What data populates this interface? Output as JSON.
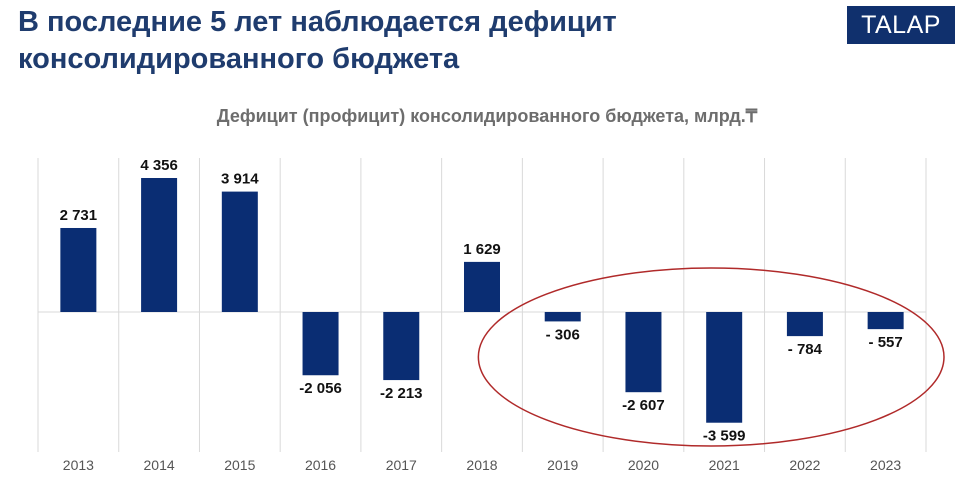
{
  "header": {
    "headline": "В последние 5 лет наблюдается дефицит консолидированного бюджета",
    "logo_text": "TALAP"
  },
  "colors": {
    "bar": "#0a2d73",
    "headline": "#1f3c6e",
    "logo_bg": "#10306d",
    "highlight_ellipse": "#b02a2a",
    "gridline": "#d9d9d9"
  },
  "chart_data": {
    "type": "bar",
    "title": "Дефицит (профицит) консолидированного бюджета, млрд.₸",
    "categories": [
      "2013",
      "2014",
      "2015",
      "2016",
      "2017",
      "2018",
      "2019",
      "2020",
      "2021",
      "2022",
      "2023"
    ],
    "values": [
      2731,
      4356,
      3914,
      -2056,
      -2213,
      1629,
      -306,
      -2607,
      -3599,
      -784,
      -557
    ],
    "data_labels": [
      "2 731",
      "4 356",
      "3 914",
      "-2 056",
      "-2 213",
      "1 629",
      "- 306",
      "-2 607",
      "-3 599",
      "- 784",
      "- 557"
    ],
    "ylim": [
      -4200,
      5000
    ],
    "grid": "vertical category separators",
    "legend": "none",
    "highlighted_categories": [
      "2019",
      "2020",
      "2021",
      "2022",
      "2023"
    ]
  }
}
